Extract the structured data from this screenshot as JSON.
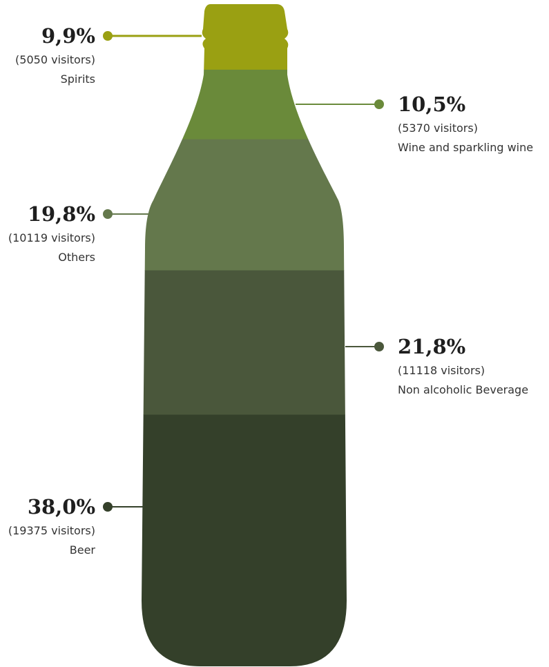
{
  "chart_data": {
    "type": "bottle",
    "categories": [
      "Spirits",
      "Wine and sparkling wine",
      "Others",
      "Non alcoholic Beverage",
      "Beer"
    ],
    "values": [
      9.9,
      10.5,
      19.8,
      21.8,
      38.0
    ],
    "value_labels": [
      "9,9%",
      "10,5%",
      "19,8%",
      "21,8%",
      "38,0%"
    ],
    "visitor_labels": [
      "(5050 visitors)",
      "(5370 visitors)",
      "(10119 visitors)",
      "(11118 visitors)",
      "(19375 visitors)"
    ],
    "colors": [
      "#9aa012",
      "#6a8a3a",
      "#64784c",
      "#4a573b",
      "#34402a"
    ]
  }
}
